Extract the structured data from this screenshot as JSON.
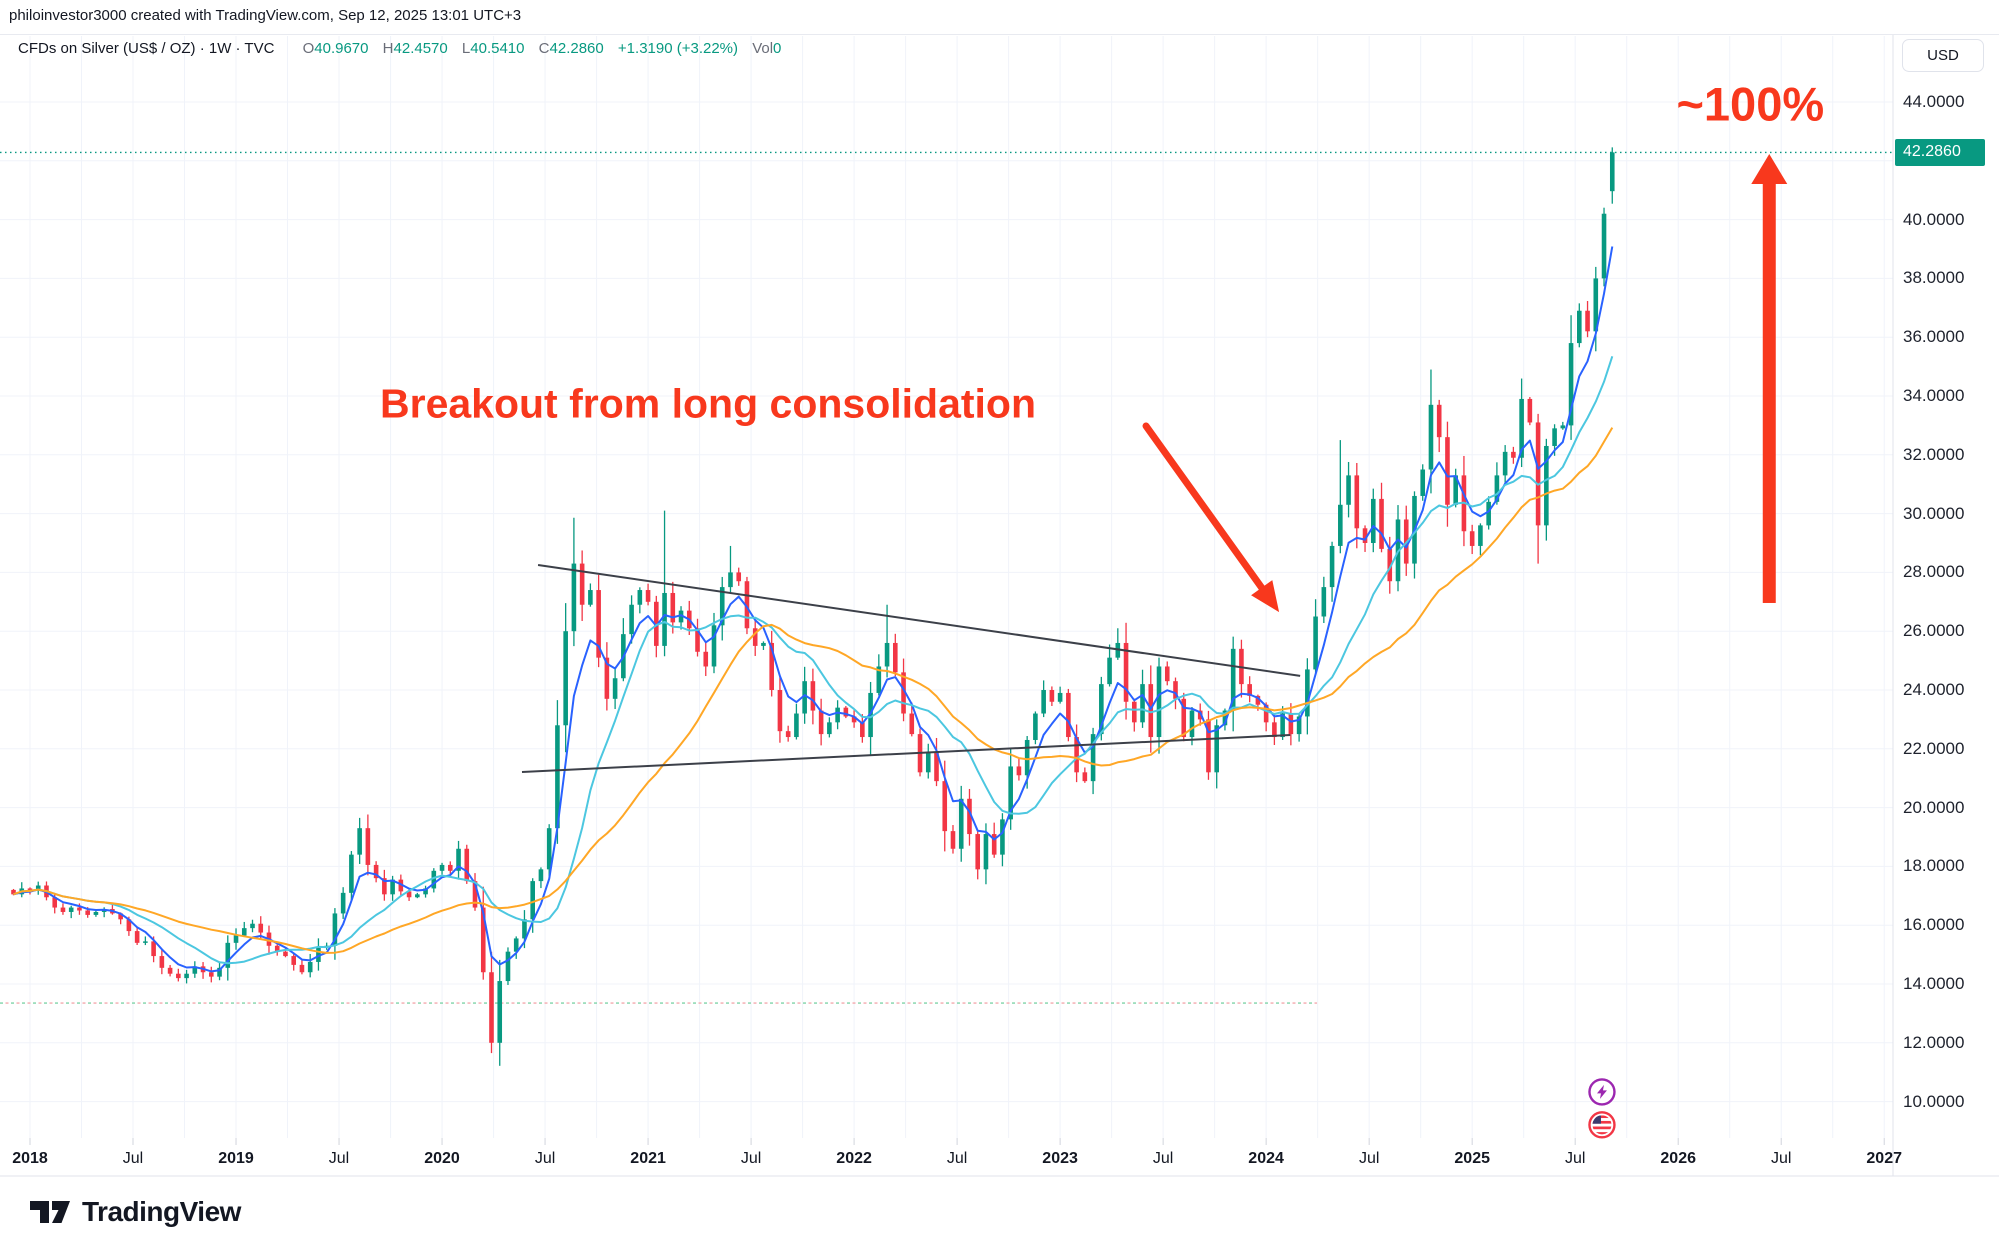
{
  "header": {
    "watermark": "philoinvestor3000 created with TradingView.com, Sep 12, 2025 13:01 UTC+3"
  },
  "legend": {
    "symbol": "CFDs on Silver (US$ / OZ) · 1W · TVC",
    "o_label": "O",
    "o": "40.9670",
    "h_label": "H",
    "h": "42.4570",
    "l_label": "L",
    "l": "40.5410",
    "c_label": "C",
    "c": "42.2860",
    "change": "+1.3190 (+3.22%)",
    "vol_label": "Vol",
    "vol": "0"
  },
  "axis": {
    "currency": "USD",
    "price_label": "42.2860"
  },
  "annotations": {
    "breakout_text": "Breakout from long consolidation",
    "pct_text": "~100%"
  },
  "footer": {
    "brand": "TradingView"
  },
  "colors": {
    "accent_teal": "#089981",
    "candle_up": "#089981",
    "candle_down": "#f23645",
    "ma_fast": "#2962ff",
    "ma_mid": "#4cc7e0",
    "ma_slow": "#ffa726",
    "grid": "#f0f3fa",
    "axis_border": "#e0e3eb",
    "tick_mark": "#d1d4dc",
    "text_dark": "#131722",
    "annotation_red": "#f8381d",
    "trendline": "#3c4049",
    "level_green": "#7fd4a8",
    "level_pink": "#f4a9ad",
    "event_purple": "#9c27b0",
    "flag_blue": "#3c3b6e"
  },
  "chart_data": {
    "type": "candlestick",
    "title": "CFDs on Silver (US$ / OZ), 1W, TVC",
    "ylabel": "USD",
    "grid": true,
    "x_domain": [
      2017.8544,
      2027.0426
    ],
    "y_domain": [
      8.7619,
      46.2449
    ],
    "t_start": 2017.92,
    "t_step": 0.04,
    "closes": [
      17.05,
      17.25,
      17.2,
      17.35,
      16.95,
      16.6,
      16.45,
      16.6,
      16.5,
      16.35,
      16.45,
      16.55,
      16.4,
      16.2,
      15.8,
      15.4,
      15.45,
      14.95,
      14.55,
      14.35,
      14.2,
      14.35,
      14.6,
      14.4,
      14.25,
      14.55,
      15.4,
      15.65,
      15.9,
      16.05,
      15.75,
      15.3,
      15.1,
      14.95,
      14.65,
      14.4,
      14.75,
      15.25,
      15.3,
      16.4,
      17.1,
      18.4,
      19.3,
      18.05,
      17.6,
      17.05,
      17.55,
      17.15,
      16.95,
      17.05,
      17.25,
      17.85,
      18.05,
      17.85,
      18.6,
      17.5,
      16.6,
      14.4,
      12.0,
      14.1,
      15.1,
      15.55,
      16.2,
      17.5,
      17.9,
      19.3,
      22.8,
      26.0,
      28.3,
      26.9,
      27.4,
      25.1,
      23.7,
      24.4,
      25.9,
      26.9,
      27.4,
      27.0,
      25.5,
      27.3,
      26.3,
      26.7,
      26.1,
      25.3,
      24.8,
      26.2,
      27.5,
      28.0,
      27.7,
      26.1,
      25.5,
      25.6,
      24.0,
      22.6,
      22.4,
      23.2,
      24.3,
      23.3,
      22.5,
      22.9,
      23.4,
      23.1,
      22.9,
      22.4,
      23.9,
      24.8,
      25.6,
      24.6,
      23.2,
      22.5,
      21.2,
      21.9,
      20.9,
      19.2,
      18.6,
      20.3,
      19.1,
      17.9,
      19.1,
      18.4,
      19.6,
      21.4,
      21.1,
      22.3,
      23.2,
      24.0,
      23.6,
      23.9,
      22.4,
      21.2,
      20.9,
      22.5,
      24.2,
      25.1,
      25.6,
      23.6,
      22.9,
      24.2,
      22.4,
      24.8,
      24.3,
      23.7,
      22.4,
      23.3,
      23.0,
      21.2,
      22.8,
      23.3,
      25.4,
      24.2,
      23.8,
      23.5,
      22.9,
      22.4,
      23.2,
      22.5,
      23.1,
      24.7,
      26.5,
      27.5,
      28.9,
      30.3,
      31.3,
      29.5,
      29.0,
      30.5,
      28.8,
      27.7,
      29.8,
      28.3,
      30.6,
      31.5,
      33.7,
      32.6,
      30.3,
      31.3,
      29.4,
      28.9,
      29.6,
      30.4,
      31.3,
      32.1,
      31.9,
      33.9,
      33.1,
      29.6,
      32.3,
      32.9,
      33.0,
      35.8,
      36.9,
      36.2,
      38.0,
      40.2,
      42.29
    ],
    "last_bar": {
      "o": 40.967,
      "h": 42.457,
      "l": 40.541,
      "c": 42.286
    },
    "wick_overrides": [
      [
        2019.6,
        "h",
        19.65
      ],
      [
        2020.24,
        "l",
        11.65
      ],
      [
        2020.64,
        "h",
        29.86
      ],
      [
        2021.08,
        "h",
        30.1
      ],
      [
        2021.4,
        "h",
        28.9
      ],
      [
        2022.16,
        "h",
        26.9
      ],
      [
        2022.6,
        "l",
        17.56
      ],
      [
        2023.28,
        "h",
        26.1
      ],
      [
        2024.36,
        "h",
        32.5
      ],
      [
        2024.8,
        "h",
        34.9
      ],
      [
        2025.32,
        "l",
        28.3
      ]
    ],
    "moving_averages": [
      {
        "name": "fast-ma",
        "type": "ema",
        "window": 5,
        "color_key": "ma_fast"
      },
      {
        "name": "mid-ma",
        "type": "sma",
        "window": 12,
        "color_key": "ma_mid"
      },
      {
        "name": "slow-ma",
        "type": "sma",
        "window": 26,
        "color_key": "ma_slow"
      }
    ],
    "trendlines": [
      {
        "name": "upper-consolidation-line",
        "from": [
          2020.466,
          28.25
        ],
        "to": [
          2024.165,
          24.48
        ]
      },
      {
        "name": "lower-consolidation-line",
        "from": [
          2020.388,
          21.21
        ],
        "to": [
          2024.117,
          22.47
        ]
      }
    ],
    "level_line": {
      "v": 13.35,
      "t_from": 2017.8544,
      "t_to": 2024.247
    },
    "price_line": {
      "v": 42.286
    },
    "y_ticks": [
      44,
      42,
      40,
      38,
      36,
      34,
      32,
      30,
      28,
      26,
      24,
      22,
      20,
      18,
      16,
      14,
      12,
      10
    ],
    "y_tick_decimals": 4,
    "x_ticks": [
      {
        "t": 2018.0,
        "label": "2018",
        "bold": true
      },
      {
        "t": 2018.5,
        "label": "Jul",
        "bold": false
      },
      {
        "t": 2019.0,
        "label": "2019",
        "bold": true
      },
      {
        "t": 2019.5,
        "label": "Jul",
        "bold": false
      },
      {
        "t": 2020.0,
        "label": "2020",
        "bold": true
      },
      {
        "t": 2020.5,
        "label": "Jul",
        "bold": false
      },
      {
        "t": 2021.0,
        "label": "2021",
        "bold": true
      },
      {
        "t": 2021.5,
        "label": "Jul",
        "bold": false
      },
      {
        "t": 2022.0,
        "label": "2022",
        "bold": true
      },
      {
        "t": 2022.5,
        "label": "Jul",
        "bold": false
      },
      {
        "t": 2023.0,
        "label": "2023",
        "bold": true
      },
      {
        "t": 2023.5,
        "label": "Jul",
        "bold": false
      },
      {
        "t": 2024.0,
        "label": "2024",
        "bold": true
      },
      {
        "t": 2024.5,
        "label": "Jul",
        "bold": false
      },
      {
        "t": 2025.0,
        "label": "2025",
        "bold": true
      },
      {
        "t": 2025.5,
        "label": "Jul",
        "bold": false
      },
      {
        "t": 2026.0,
        "label": "2026",
        "bold": true
      },
      {
        "t": 2026.5,
        "label": "Jul",
        "bold": false
      },
      {
        "t": 2027.0,
        "label": "2027",
        "bold": true
      }
    ],
    "annotations": {
      "breakout_label": {
        "t": 2021.291,
        "v": 33.73
      },
      "breakout_arrow": {
        "from": [
          2023.417,
          32.98
        ],
        "to": [
          2024.063,
          26.65
        ]
      },
      "pct_label": {
        "t": 2026.35,
        "v": 43.93
      },
      "big_arrow": {
        "t": 2026.442,
        "v_tip": 42.23,
        "v_tail": 26.96
      }
    },
    "event_markers": [
      {
        "name": "lightning-event-icon",
        "t": 2025.63,
        "v": 10.33
      },
      {
        "name": "us-flag-event-icon",
        "t": 2025.63,
        "v": 9.21
      }
    ]
  }
}
